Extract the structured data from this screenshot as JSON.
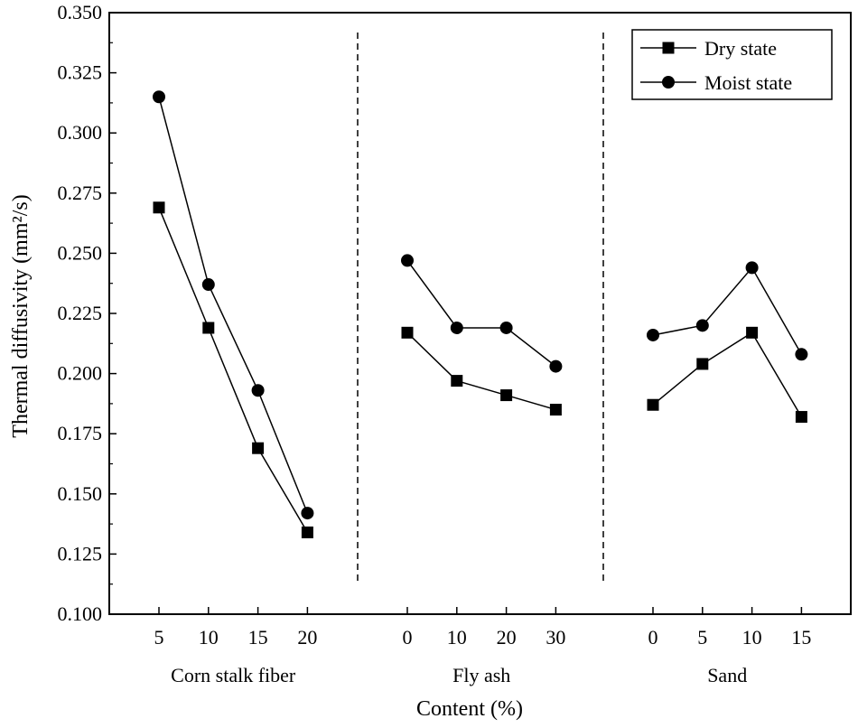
{
  "chart_data": {
    "type": "line",
    "title": "",
    "xlabel": "Content (%)",
    "ylabel": "Thermal diffusivity (mm²/s)",
    "ylim": [
      0.1,
      0.35
    ],
    "yticks": [
      "0.100",
      "0.125",
      "0.150",
      "0.175",
      "0.200",
      "0.225",
      "0.250",
      "0.275",
      "0.300",
      "0.325",
      "0.350"
    ],
    "legend_position": "top-right",
    "groups": [
      {
        "label": "Corn stalk fiber",
        "categories": [
          "5",
          "10",
          "15",
          "20"
        ],
        "series": [
          {
            "name": "Dry state",
            "marker": "square",
            "values": [
              0.269,
              0.219,
              0.169,
              0.134
            ]
          },
          {
            "name": "Moist state",
            "marker": "circle",
            "values": [
              0.315,
              0.237,
              0.193,
              0.142
            ]
          }
        ]
      },
      {
        "label": "Fly ash",
        "categories": [
          "0",
          "10",
          "20",
          "30"
        ],
        "series": [
          {
            "name": "Dry state",
            "marker": "square",
            "values": [
              0.217,
              0.197,
              0.191,
              0.185
            ]
          },
          {
            "name": "Moist state",
            "marker": "circle",
            "values": [
              0.247,
              0.219,
              0.219,
              0.203
            ]
          }
        ]
      },
      {
        "label": "Sand",
        "categories": [
          "0",
          "5",
          "10",
          "15"
        ],
        "series": [
          {
            "name": "Dry state",
            "marker": "square",
            "values": [
              0.187,
              0.204,
              0.217,
              0.182
            ]
          },
          {
            "name": "Moist state",
            "marker": "circle",
            "values": [
              0.216,
              0.22,
              0.244,
              0.208
            ]
          }
        ]
      }
    ],
    "legend": [
      {
        "name": "Dry state",
        "marker": "square"
      },
      {
        "name": "Moist state",
        "marker": "circle"
      }
    ]
  },
  "colors": {
    "line": "#000000",
    "marker": "#000000",
    "background": "#ffffff"
  }
}
